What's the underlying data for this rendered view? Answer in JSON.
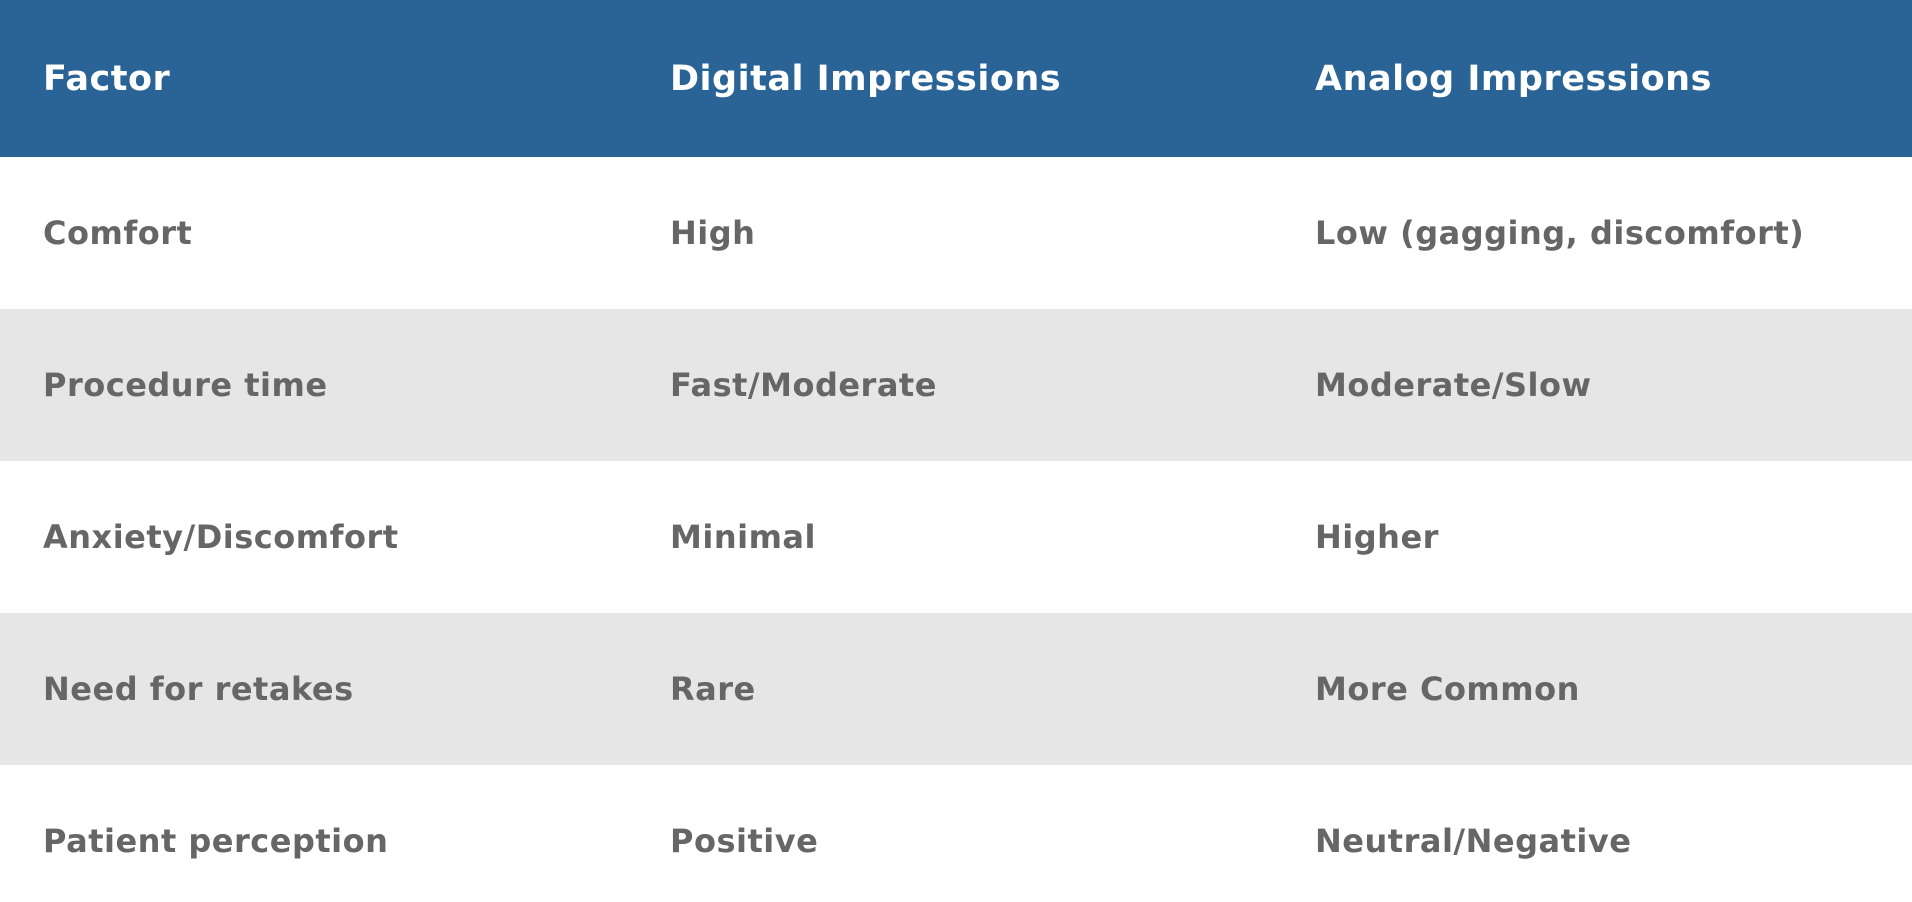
{
  "chart_data": {
    "type": "table",
    "columns": [
      "Factor",
      "Digital Impressions",
      "Analog Impressions"
    ],
    "rows": [
      [
        "Comfort",
        "High",
        "Low (gagging, discomfort)"
      ],
      [
        "Procedure time",
        "Fast/Moderate",
        "Moderate/Slow"
      ],
      [
        "Anxiety/Discomfort",
        "Minimal",
        "Higher"
      ],
      [
        "Need for retakes",
        "Rare",
        "More Common"
      ],
      [
        "Patient perception",
        "Positive",
        "Neutral/Negative"
      ]
    ],
    "layout": {
      "header_position": "top",
      "striped": true,
      "stripe_rows": [
        2,
        4
      ]
    }
  },
  "colors": {
    "header_bg": "#2a6496",
    "header_text": "#ffffff",
    "row_bg": "#ffffff",
    "row_alt_bg": "#e6e6e6",
    "cell_text": "#666666"
  }
}
